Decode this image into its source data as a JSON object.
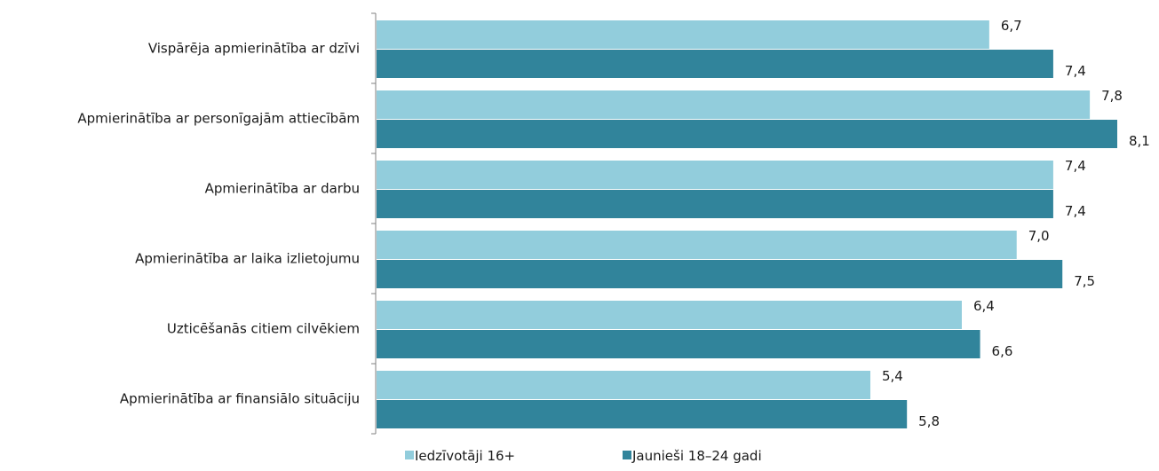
{
  "chart_data": {
    "type": "bar",
    "orientation": "horizontal",
    "categories": [
      "Vispārēja apmierinātība ar dzīvi",
      "Apmierinātība ar personīgajām attiecībām",
      "Apmierinātība ar darbu",
      "Apmierinātība ar laika izlietojumu",
      "Uzticēšanās citiem cilvēkiem",
      "Apmierinātība ar finansiālo situāciju"
    ],
    "series": [
      {
        "name": "Iedzīvotāji 16+",
        "color": "#92CDDC",
        "values": [
          6.7,
          7.8,
          7.4,
          7.0,
          6.4,
          5.4
        ],
        "labels": [
          "6,7",
          "7,8",
          "7,4",
          "7,0",
          "6,4",
          "5,4"
        ]
      },
      {
        "name": "Jaunieši 18–24 gadi",
        "color": "#31849B",
        "values": [
          7.4,
          8.1,
          7.4,
          7.5,
          6.6,
          5.8
        ],
        "labels": [
          "7,4",
          "8,1",
          "7,4",
          "7,5",
          "6,6",
          "5,8"
        ]
      }
    ],
    "xlim": [
      0,
      8.1
    ],
    "grid": false,
    "legend_position": "bottom"
  }
}
